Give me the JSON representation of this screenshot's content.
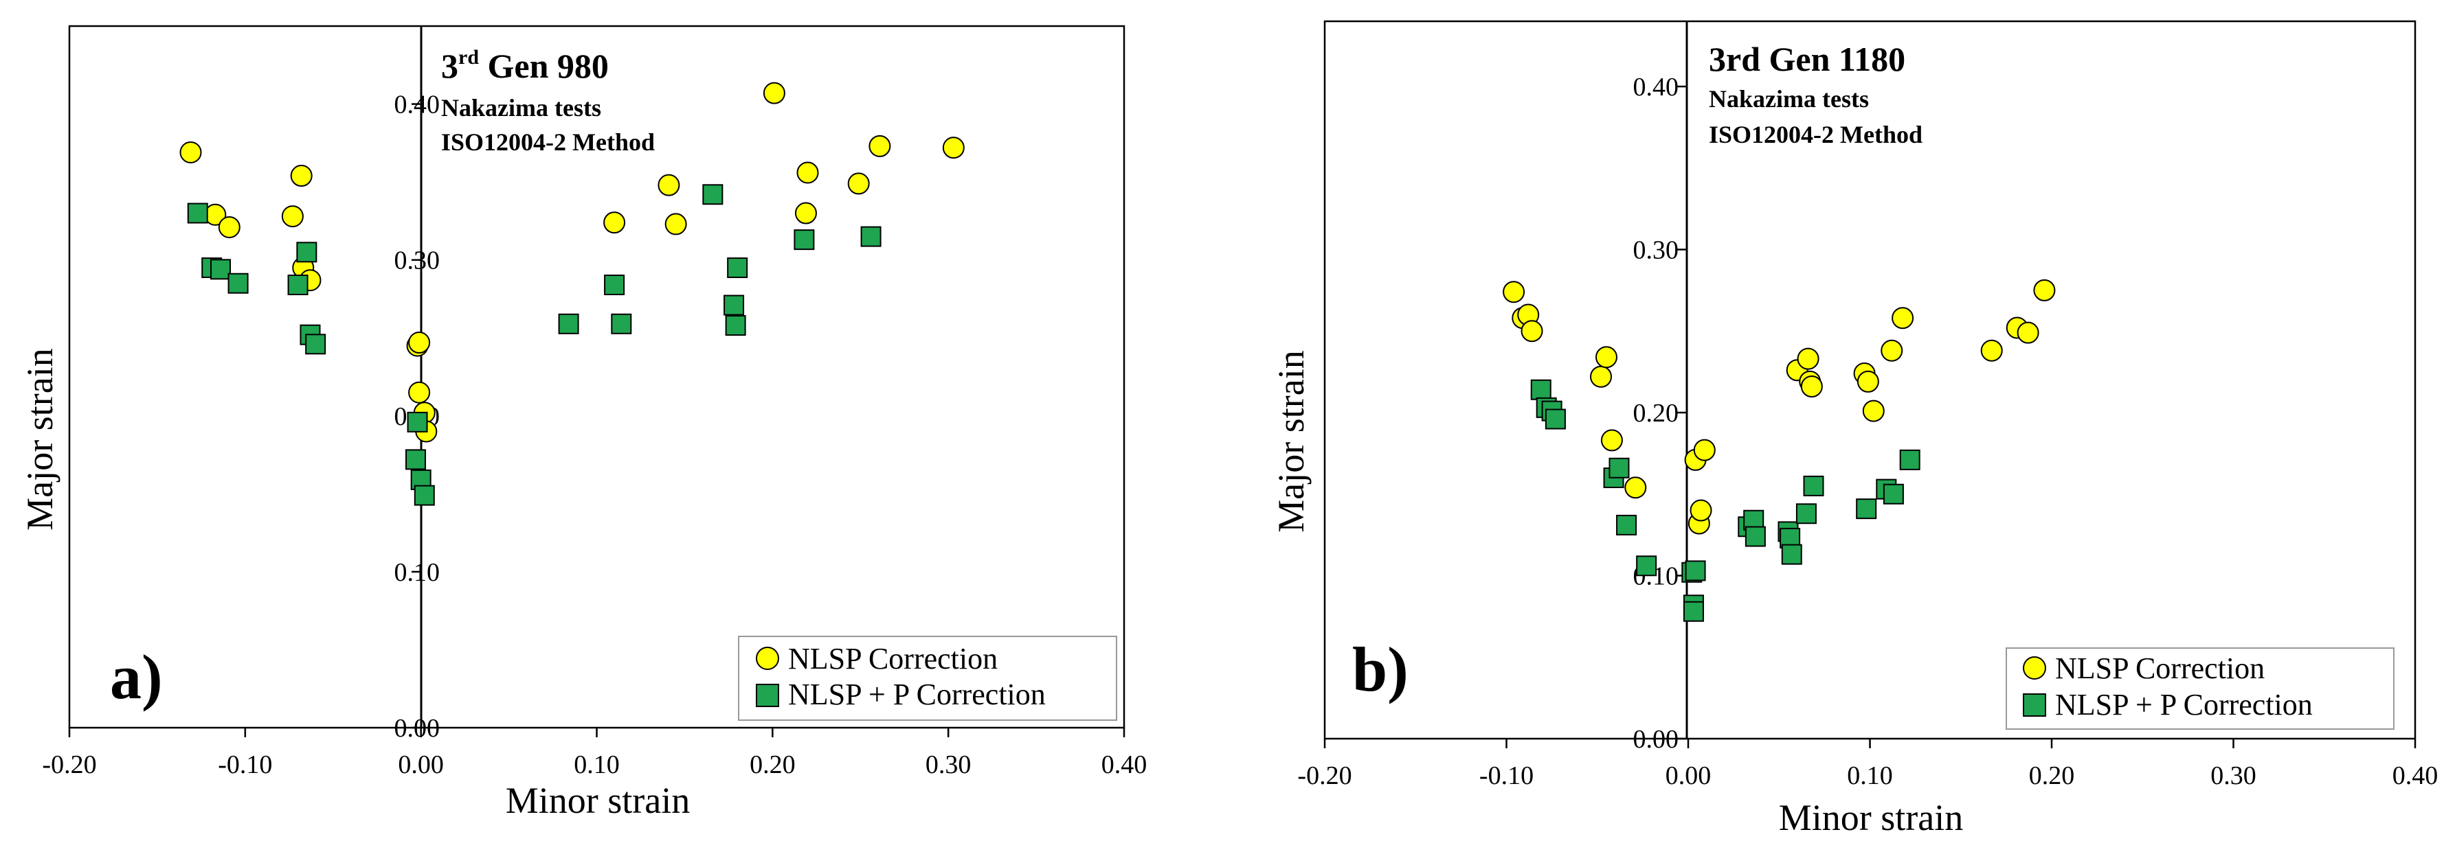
{
  "chart_data": [
    {
      "type": "scatter",
      "panel_label": "a)",
      "title": "3rd Gen 980",
      "title_base": "3",
      "title_sup": "rd",
      "title_rest": " Gen 980",
      "subtitle_lines": [
        "Nakazima tests",
        "ISO12004-2 Method"
      ],
      "xlabel": "Minor strain",
      "ylabel": "Major strain",
      "xlim": [
        -0.2,
        0.4
      ],
      "ylim": [
        0.0,
        0.45
      ],
      "xticks": [
        -0.2,
        -0.1,
        0.0,
        0.1,
        0.2,
        0.3,
        0.4
      ],
      "xtick_labels": [
        "-0.20",
        "-0.10",
        "0.00",
        "0.10",
        "0.20",
        "0.30",
        "0.40"
      ],
      "yticks": [
        0.0,
        0.1,
        0.2,
        0.3,
        0.4
      ],
      "ytick_labels": [
        "0.00",
        "0.10",
        "0.20",
        "0.30",
        "0.40"
      ],
      "legend_position": "bottom-right",
      "series": [
        {
          "name": "NLSP Correction",
          "marker": "circle",
          "color": "#FFFF00",
          "points": [
            [
              -0.131,
              0.369
            ],
            [
              -0.117,
              0.329
            ],
            [
              -0.109,
              0.321
            ],
            [
              -0.073,
              0.328
            ],
            [
              -0.068,
              0.354
            ],
            [
              -0.067,
              0.295
            ],
            [
              -0.063,
              0.287
            ],
            [
              -0.002,
              0.245
            ],
            [
              -0.001,
              0.247
            ],
            [
              -0.001,
              0.215
            ],
            [
              0.002,
              0.202
            ],
            [
              0.003,
              0.19
            ],
            [
              0.11,
              0.324
            ],
            [
              0.141,
              0.348
            ],
            [
              0.145,
              0.323
            ],
            [
              0.201,
              0.407
            ],
            [
              0.219,
              0.33
            ],
            [
              0.22,
              0.356
            ],
            [
              0.249,
              0.349
            ],
            [
              0.261,
              0.373
            ],
            [
              0.303,
              0.372
            ]
          ]
        },
        {
          "name": "NLSP + P Correction",
          "marker": "square",
          "color": "#1FA450",
          "points": [
            [
              -0.127,
              0.33
            ],
            [
              -0.119,
              0.295
            ],
            [
              -0.114,
              0.294
            ],
            [
              -0.104,
              0.285
            ],
            [
              -0.07,
              0.284
            ],
            [
              -0.065,
              0.305
            ],
            [
              -0.063,
              0.252
            ],
            [
              -0.06,
              0.246
            ],
            [
              -0.002,
              0.196
            ],
            [
              -0.003,
              0.172
            ],
            [
              0.0,
              0.159
            ],
            [
              0.002,
              0.149
            ],
            [
              0.084,
              0.259
            ],
            [
              0.11,
              0.284
            ],
            [
              0.114,
              0.259
            ],
            [
              0.166,
              0.342
            ],
            [
              0.178,
              0.271
            ],
            [
              0.179,
              0.258
            ],
            [
              0.18,
              0.295
            ],
            [
              0.218,
              0.313
            ],
            [
              0.256,
              0.315
            ]
          ]
        }
      ]
    },
    {
      "type": "scatter",
      "panel_label": "b)",
      "title": "3rd Gen 1180",
      "subtitle_lines": [
        "Nakazima tests",
        "ISO12004-2 Method"
      ],
      "xlabel": "Minor strain",
      "ylabel": "Major strain",
      "xlim": [
        -0.2,
        0.4
      ],
      "ylim": [
        0.0,
        0.44
      ],
      "xticks": [
        -0.2,
        -0.1,
        0.0,
        0.1,
        0.2,
        0.3,
        0.4
      ],
      "xtick_labels": [
        "-0.20",
        "-0.10",
        "0.00",
        "0.10",
        "0.20",
        "0.30",
        "0.40"
      ],
      "yticks": [
        0.0,
        0.1,
        0.2,
        0.3,
        0.4
      ],
      "ytick_labels": [
        "0.00",
        "0.10",
        "0.20",
        "0.30",
        "0.40"
      ],
      "legend_position": "bottom-right",
      "series": [
        {
          "name": "NLSP Correction",
          "marker": "circle",
          "color": "#FFFF00",
          "points": [
            [
              -0.096,
              0.274
            ],
            [
              -0.091,
              0.258
            ],
            [
              -0.088,
              0.26
            ],
            [
              -0.086,
              0.25
            ],
            [
              -0.048,
              0.222
            ],
            [
              -0.045,
              0.234
            ],
            [
              -0.042,
              0.183
            ],
            [
              -0.029,
              0.154
            ],
            [
              0.004,
              0.171
            ],
            [
              0.006,
              0.132
            ],
            [
              0.007,
              0.14
            ],
            [
              0.009,
              0.177
            ],
            [
              0.06,
              0.226
            ],
            [
              0.066,
              0.233
            ],
            [
              0.067,
              0.219
            ],
            [
              0.068,
              0.216
            ],
            [
              0.097,
              0.224
            ],
            [
              0.099,
              0.219
            ],
            [
              0.102,
              0.201
            ],
            [
              0.112,
              0.238
            ],
            [
              0.118,
              0.258
            ],
            [
              0.167,
              0.238
            ],
            [
              0.181,
              0.252
            ],
            [
              0.187,
              0.249
            ],
            [
              0.196,
              0.275
            ]
          ]
        },
        {
          "name": "NLSP + P Correction",
          "marker": "square",
          "color": "#1FA450",
          "points": [
            [
              -0.081,
              0.214
            ],
            [
              -0.078,
              0.203
            ],
            [
              -0.075,
              0.201
            ],
            [
              -0.073,
              0.196
            ],
            [
              -0.041,
              0.16
            ],
            [
              -0.038,
              0.166
            ],
            [
              -0.034,
              0.131
            ],
            [
              -0.023,
              0.106
            ],
            [
              0.002,
              0.102
            ],
            [
              0.003,
              0.082
            ],
            [
              0.003,
              0.078
            ],
            [
              0.004,
              0.103
            ],
            [
              0.033,
              0.13
            ],
            [
              0.036,
              0.134
            ],
            [
              0.037,
              0.124
            ],
            [
              0.055,
              0.127
            ],
            [
              0.056,
              0.123
            ],
            [
              0.057,
              0.113
            ],
            [
              0.065,
              0.138
            ],
            [
              0.069,
              0.155
            ],
            [
              0.098,
              0.141
            ],
            [
              0.109,
              0.153
            ],
            [
              0.113,
              0.15
            ],
            [
              0.122,
              0.171
            ]
          ]
        }
      ]
    }
  ]
}
